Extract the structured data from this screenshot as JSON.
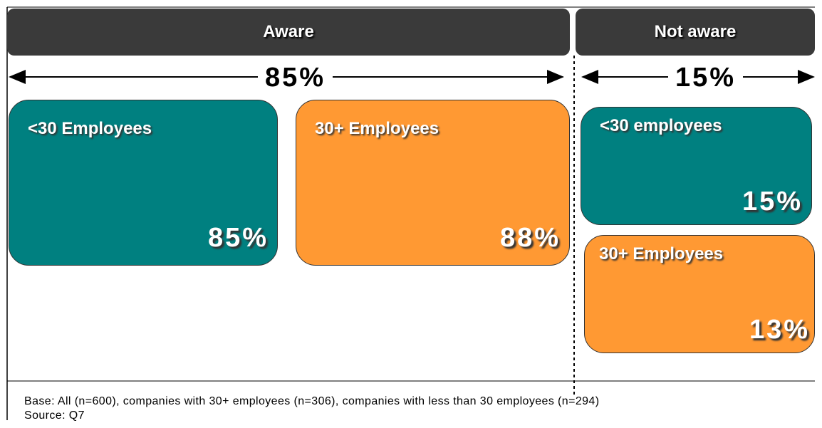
{
  "aware": {
    "title": "Aware",
    "total": "85%",
    "boxes": [
      {
        "label": "<30 Employees",
        "value": "85%"
      },
      {
        "label": "30+ Employees",
        "value": "88%"
      }
    ]
  },
  "not_aware": {
    "title": "Not aware",
    "total": "15%",
    "boxes": [
      {
        "label": "<30 employees",
        "value": "15%"
      },
      {
        "label": "30+ Employees",
        "value": "13%"
      }
    ]
  },
  "footer": {
    "base": "Base: All (n=600), companies with 30+ employees (n=306), companies with less than 30 employees (n=294)",
    "source": "Source: Q7"
  }
}
